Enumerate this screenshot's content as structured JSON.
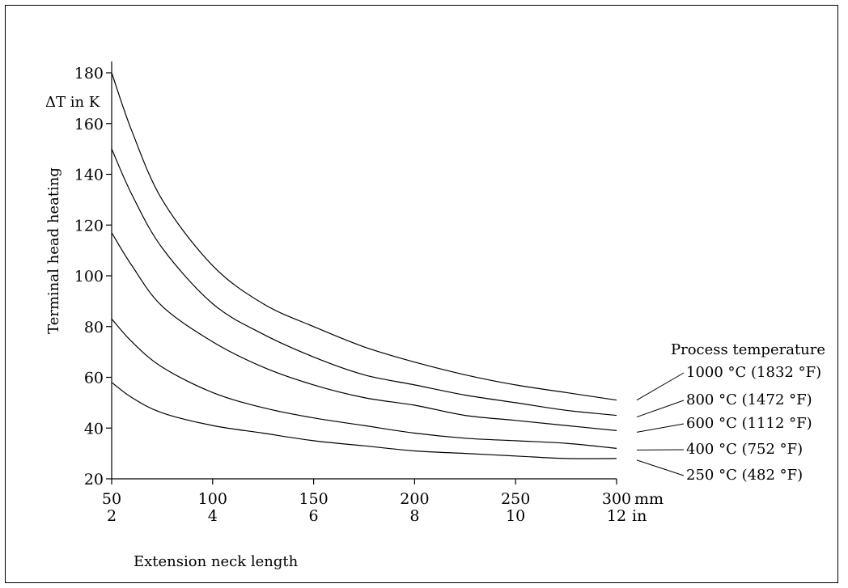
{
  "chart_data": {
    "type": "line",
    "title": "",
    "ylabel": "Terminal head heating",
    "yunit": "ΔT in K",
    "xlabel": "Extension neck length",
    "xunit_primary": "mm",
    "xunit_secondary": "in",
    "xlim": [
      50,
      300
    ],
    "ylim": [
      20,
      180
    ],
    "yticks": [
      20,
      40,
      60,
      80,
      100,
      120,
      140,
      160,
      180
    ],
    "xticks": [
      50,
      100,
      150,
      200,
      250,
      300
    ],
    "xticks_in": [
      2,
      4,
      6,
      8,
      10,
      12
    ],
    "legend_title": "Process temperature",
    "grid": false,
    "series": [
      {
        "name": "1000 °C (1832 °F)",
        "x": [
          50,
          60,
          75,
          100,
          125,
          150,
          175,
          200,
          225,
          250,
          275,
          300
        ],
        "y": [
          180,
          157,
          130,
          104,
          89,
          80,
          72,
          66,
          61,
          57,
          54,
          51
        ]
      },
      {
        "name": "800 °C (1472 °F)",
        "x": [
          50,
          60,
          75,
          100,
          125,
          150,
          175,
          200,
          225,
          250,
          275,
          300
        ],
        "y": [
          150,
          132,
          111,
          89,
          77,
          68,
          61,
          57,
          53,
          50,
          47,
          45
        ]
      },
      {
        "name": "600 °C (1112 °F)",
        "x": [
          50,
          60,
          75,
          100,
          125,
          150,
          175,
          200,
          225,
          250,
          275,
          300
        ],
        "y": [
          117,
          104,
          88,
          74,
          64,
          57,
          52,
          49,
          45,
          43,
          41,
          39
        ]
      },
      {
        "name": "400 °C (752 °F)",
        "x": [
          50,
          60,
          75,
          100,
          125,
          150,
          175,
          200,
          225,
          250,
          275,
          300
        ],
        "y": [
          83,
          74,
          64,
          54,
          48,
          44,
          41,
          38,
          36,
          35,
          34,
          32
        ]
      },
      {
        "name": "250 °C (482 °F)",
        "x": [
          50,
          60,
          75,
          100,
          125,
          150,
          175,
          200,
          225,
          250,
          275,
          300
        ],
        "y": [
          58,
          52,
          46,
          41,
          38,
          35,
          33,
          31,
          30,
          29,
          28,
          28
        ]
      }
    ]
  }
}
